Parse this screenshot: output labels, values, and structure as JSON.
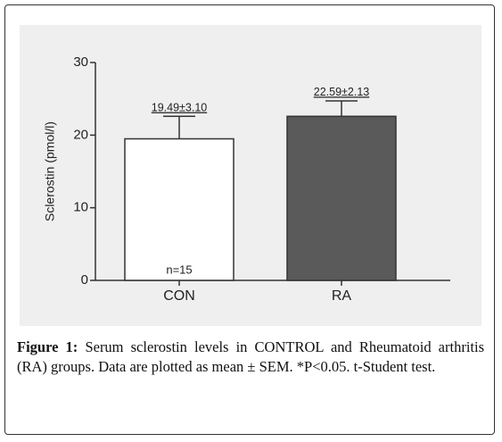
{
  "chart_data": {
    "type": "bar",
    "y_label": "Sclerostin (pmol/l)",
    "categories": [
      "CON",
      "RA"
    ],
    "values": [
      19.49,
      22.59
    ],
    "errors": [
      3.1,
      2.13
    ],
    "value_labels": [
      "19.49±3.10",
      "22.59±2.13"
    ],
    "colors": [
      "#ffffff",
      "#5a5a5a"
    ],
    "annotation": "n=15",
    "ylim": [
      0,
      30
    ],
    "yticks": [
      0,
      10,
      20,
      30
    ]
  },
  "caption": {
    "label": "Figure 1:",
    "text": "Serum sclerostin levels in CONTROL and Rheumatoid arthritis (RA) groups. Data are plotted as mean ± SEM. *P<0.05. t-Student test."
  }
}
